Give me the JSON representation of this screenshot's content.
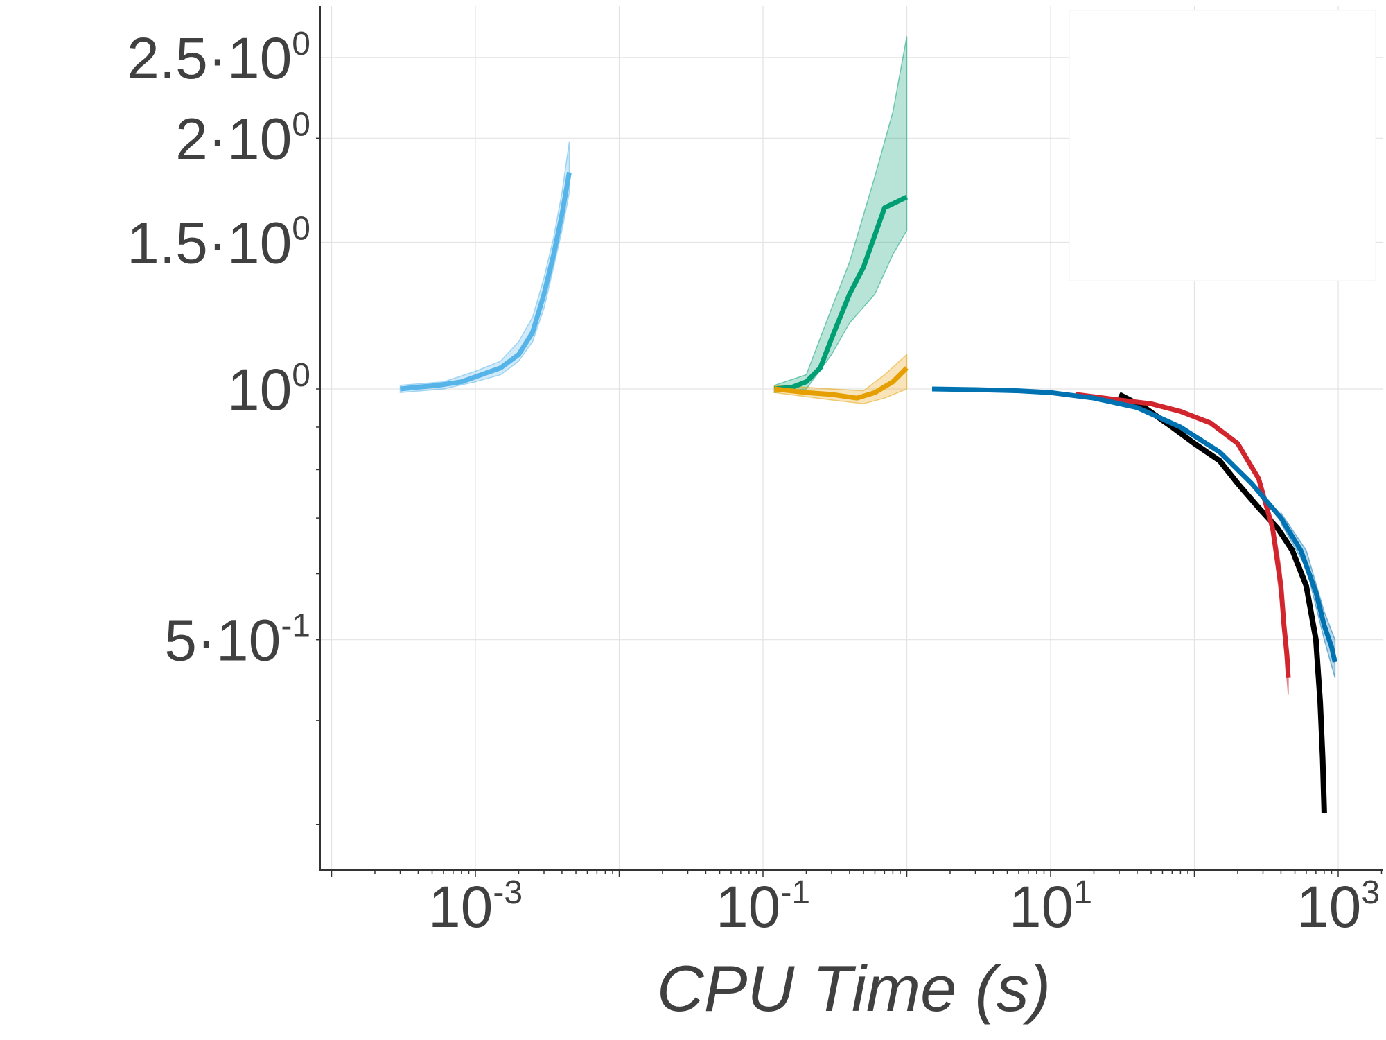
{
  "chart_data": {
    "type": "line",
    "title": "",
    "xlabel": "CPU Time (s)",
    "ylabel": "",
    "x_scale": "log",
    "y_scale": "log",
    "xlim": [
      0.00018,
      1500
    ],
    "ylim": [
      0.3,
      2.8
    ],
    "x_ticks": [
      {
        "value": 0.001,
        "base": "10",
        "exp": "-3"
      },
      {
        "value": 0.1,
        "base": "10",
        "exp": "-1"
      },
      {
        "value": 10,
        "base": "10",
        "exp": "1"
      },
      {
        "value": 1000,
        "base": "10",
        "exp": "3"
      }
    ],
    "y_ticks": [
      {
        "value": 2.5,
        "base": "2.5·10",
        "exp": "0"
      },
      {
        "value": 2.0,
        "base": "2·10",
        "exp": "0"
      },
      {
        "value": 1.5,
        "base": "1.5·10",
        "exp": "0"
      },
      {
        "value": 1.0,
        "base": "10",
        "exp": "0"
      },
      {
        "value": 0.5,
        "base": "5·10",
        "exp": "-1"
      }
    ],
    "grid": true,
    "legend": {
      "placement": "top-right",
      "entries": []
    },
    "colors": {
      "light_blue": "#56b4e9",
      "green": "#009e73",
      "orange": "#e69f00",
      "blue": "#0072b2",
      "red": "#d1262e",
      "black": "#000000",
      "axis": "#333333",
      "grid": "#e3e3e3",
      "text": "#404040"
    },
    "series": [
      {
        "color": "#56b4e9",
        "band": true,
        "points": [
          [
            0.0003,
            1.0
          ],
          [
            0.0004,
            1.005
          ],
          [
            0.00055,
            1.01
          ],
          [
            0.0008,
            1.02
          ],
          [
            0.0011,
            1.04
          ],
          [
            0.0015,
            1.06
          ],
          [
            0.002,
            1.1
          ],
          [
            0.0025,
            1.17
          ],
          [
            0.003,
            1.3
          ],
          [
            0.0035,
            1.45
          ],
          [
            0.004,
            1.62
          ],
          [
            0.0045,
            1.82
          ]
        ],
        "band_low": [
          [
            0.0003,
            0.99
          ],
          [
            0.0006,
            1.0
          ],
          [
            0.001,
            1.02
          ],
          [
            0.0015,
            1.04
          ],
          [
            0.002,
            1.08
          ],
          [
            0.0025,
            1.14
          ],
          [
            0.003,
            1.25
          ],
          [
            0.0035,
            1.4
          ],
          [
            0.004,
            1.55
          ],
          [
            0.0045,
            1.72
          ]
        ],
        "band_high": [
          [
            0.0003,
            1.01
          ],
          [
            0.0006,
            1.02
          ],
          [
            0.001,
            1.05
          ],
          [
            0.0015,
            1.08
          ],
          [
            0.002,
            1.14
          ],
          [
            0.0025,
            1.22
          ],
          [
            0.003,
            1.36
          ],
          [
            0.0035,
            1.52
          ],
          [
            0.004,
            1.72
          ],
          [
            0.0045,
            1.98
          ]
        ]
      },
      {
        "color": "#009e73",
        "band": true,
        "points": [
          [
            0.12,
            1.0
          ],
          [
            0.16,
            1.005
          ],
          [
            0.2,
            1.02
          ],
          [
            0.25,
            1.06
          ],
          [
            0.3,
            1.15
          ],
          [
            0.4,
            1.3
          ],
          [
            0.5,
            1.4
          ],
          [
            0.7,
            1.65
          ],
          [
            1.0,
            1.7
          ]
        ],
        "band_low": [
          [
            0.12,
            0.99
          ],
          [
            0.2,
            1.0
          ],
          [
            0.3,
            1.1
          ],
          [
            0.4,
            1.2
          ],
          [
            0.6,
            1.3
          ],
          [
            0.8,
            1.45
          ],
          [
            1.0,
            1.55
          ]
        ],
        "band_high": [
          [
            0.12,
            1.01
          ],
          [
            0.2,
            1.04
          ],
          [
            0.3,
            1.25
          ],
          [
            0.4,
            1.42
          ],
          [
            0.6,
            1.8
          ],
          [
            0.8,
            2.15
          ],
          [
            1.0,
            2.65
          ]
        ]
      },
      {
        "color": "#e69f00",
        "band": true,
        "points": [
          [
            0.12,
            1.0
          ],
          [
            0.2,
            0.99
          ],
          [
            0.3,
            0.985
          ],
          [
            0.45,
            0.975
          ],
          [
            0.6,
            0.99
          ],
          [
            0.8,
            1.02
          ],
          [
            1.0,
            1.06
          ]
        ],
        "band_low": [
          [
            0.12,
            0.99
          ],
          [
            0.3,
            0.97
          ],
          [
            0.5,
            0.96
          ],
          [
            0.7,
            0.975
          ],
          [
            1.0,
            1.0
          ]
        ],
        "band_high": [
          [
            0.12,
            1.01
          ],
          [
            0.3,
            1.0
          ],
          [
            0.5,
            0.995
          ],
          [
            0.7,
            1.04
          ],
          [
            1.0,
            1.1
          ]
        ]
      },
      {
        "color": "#000000",
        "band": false,
        "points": [
          [
            30,
            0.985
          ],
          [
            45,
            0.95
          ],
          [
            70,
            0.9
          ],
          [
            100,
            0.86
          ],
          [
            150,
            0.82
          ],
          [
            200,
            0.77
          ],
          [
            280,
            0.72
          ],
          [
            380,
            0.68
          ],
          [
            480,
            0.64
          ],
          [
            600,
            0.58
          ],
          [
            700,
            0.5
          ],
          [
            750,
            0.42
          ],
          [
            780,
            0.36
          ],
          [
            800,
            0.31
          ]
        ]
      },
      {
        "color": "#d1262e",
        "band": true,
        "points": [
          [
            15,
            0.985
          ],
          [
            30,
            0.97
          ],
          [
            50,
            0.96
          ],
          [
            80,
            0.94
          ],
          [
            130,
            0.91
          ],
          [
            200,
            0.86
          ],
          [
            280,
            0.78
          ],
          [
            350,
            0.68
          ],
          [
            400,
            0.58
          ],
          [
            420,
            0.52
          ],
          [
            440,
            0.48
          ],
          [
            450,
            0.45
          ]
        ],
        "band_low": [
          [
            350,
            0.66
          ],
          [
            400,
            0.55
          ],
          [
            430,
            0.47
          ],
          [
            450,
            0.43
          ]
        ],
        "band_high": [
          [
            350,
            0.7
          ],
          [
            400,
            0.61
          ],
          [
            430,
            0.52
          ],
          [
            450,
            0.48
          ]
        ]
      },
      {
        "color": "#0072b2",
        "band": true,
        "points": [
          [
            1.5,
            1.0
          ],
          [
            3,
            0.998
          ],
          [
            6,
            0.995
          ],
          [
            10,
            0.99
          ],
          [
            20,
            0.975
          ],
          [
            40,
            0.95
          ],
          [
            80,
            0.9
          ],
          [
            150,
            0.84
          ],
          [
            250,
            0.77
          ],
          [
            400,
            0.7
          ],
          [
            550,
            0.64
          ],
          [
            700,
            0.57
          ],
          [
            800,
            0.52
          ],
          [
            900,
            0.49
          ],
          [
            950,
            0.47
          ]
        ],
        "band_low": [
          [
            400,
            0.69
          ],
          [
            600,
            0.61
          ],
          [
            800,
            0.5
          ],
          [
            950,
            0.45
          ]
        ],
        "band_high": [
          [
            400,
            0.71
          ],
          [
            600,
            0.64
          ],
          [
            800,
            0.54
          ],
          [
            950,
            0.5
          ]
        ]
      }
    ]
  }
}
